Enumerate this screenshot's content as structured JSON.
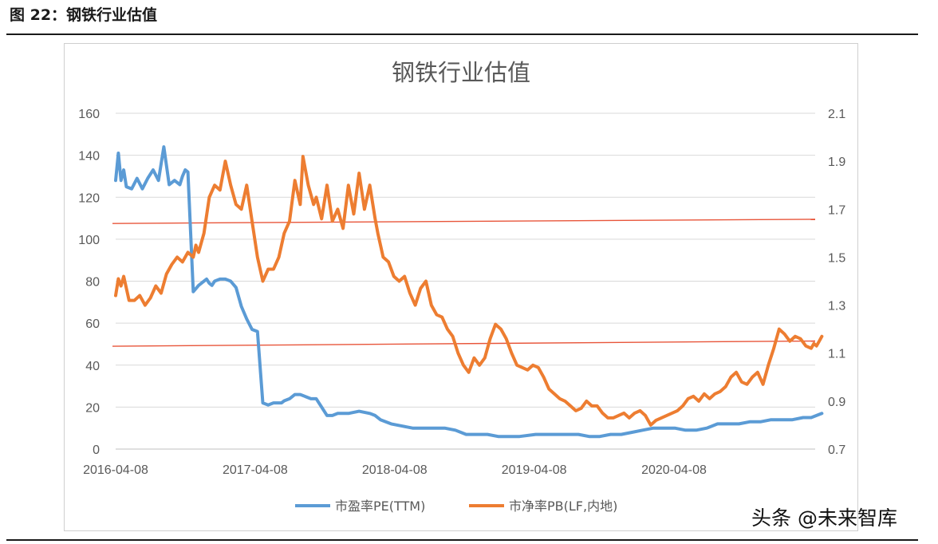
{
  "caption": "图 22：钢铁行业估值",
  "watermark": "头条 @未来智库",
  "colors": {
    "pe": "#5B9BD5",
    "pb": "#ED7D31",
    "refline": "#E8553A",
    "grid": "#D9D9D9"
  },
  "chart_data": {
    "type": "line",
    "title": "钢铁行业估值",
    "xlabel": "",
    "x_ticks": [
      "2016-04-08",
      "2017-04-08",
      "2018-04-08",
      "2019-04-08",
      "2020-04-08"
    ],
    "y_left": {
      "min": 0,
      "max": 160,
      "ticks": [
        0,
        20,
        40,
        60,
        80,
        100,
        120,
        140,
        160
      ]
    },
    "y_right": {
      "min": 0.7,
      "max": 2.1,
      "ticks": [
        "0.7",
        "0.9",
        "1.1",
        "1.3",
        "1.5",
        "1.7",
        "1.9",
        "2.1"
      ]
    },
    "grid": true,
    "legend_position": "bottom",
    "reference_lines": [
      {
        "axis": "left",
        "values": [
          107.5,
          109.5
        ]
      },
      {
        "axis": "left",
        "values": [
          49.0,
          51.5
        ]
      }
    ],
    "series": [
      {
        "name": "市盈率PE(TTM)",
        "axis": "left",
        "x": [
          "2016-04-08",
          "2016-04-15",
          "2016-04-22",
          "2016-04-29",
          "2016-05-06",
          "2016-05-20",
          "2016-06-03",
          "2016-06-17",
          "2016-07-01",
          "2016-07-15",
          "2016-07-29",
          "2016-08-12",
          "2016-08-26",
          "2016-09-09",
          "2016-09-23",
          "2016-09-30",
          "2016-10-07",
          "2016-10-14",
          "2016-10-28",
          "2016-11-11",
          "2016-11-25",
          "2016-12-02",
          "2016-12-09",
          "2016-12-16",
          "2016-12-23",
          "2017-01-06",
          "2017-01-20",
          "2017-02-03",
          "2017-02-17",
          "2017-03-03",
          "2017-03-17",
          "2017-03-31",
          "2017-04-14",
          "2017-04-28",
          "2017-05-12",
          "2017-05-26",
          "2017-06-09",
          "2017-06-16",
          "2017-06-23",
          "2017-07-07",
          "2017-07-21",
          "2017-08-04",
          "2017-08-18",
          "2017-09-01",
          "2017-09-15",
          "2017-10-13",
          "2017-10-27",
          "2017-11-10",
          "2017-11-24",
          "2017-12-08",
          "2018-01-05",
          "2018-02-02",
          "2018-02-16",
          "2018-03-02",
          "2018-03-30",
          "2018-04-27",
          "2018-05-25",
          "2018-06-22",
          "2018-07-20",
          "2018-08-17",
          "2018-09-14",
          "2018-10-12",
          "2018-11-09",
          "2018-12-07",
          "2019-01-04",
          "2019-02-01",
          "2019-03-01",
          "2019-04-12",
          "2019-05-10",
          "2019-06-07",
          "2019-07-05",
          "2019-08-02",
          "2019-08-30",
          "2019-09-27",
          "2019-10-25",
          "2019-11-22",
          "2019-12-20",
          "2020-01-17",
          "2020-02-14",
          "2020-03-13",
          "2020-04-10",
          "2020-05-08",
          "2020-06-05",
          "2020-07-03",
          "2020-07-31",
          "2020-08-28",
          "2020-09-25",
          "2020-10-23",
          "2020-11-20",
          "2020-12-18",
          "2021-01-15",
          "2021-02-12",
          "2021-03-12",
          "2021-04-02",
          "2021-04-16",
          "2021-04-30"
        ],
        "values": [
          128,
          141,
          128,
          133,
          125,
          124,
          129,
          124,
          129,
          133,
          128,
          144,
          126,
          128,
          126,
          130,
          133,
          132,
          75,
          78,
          80,
          81,
          79,
          78,
          80,
          81,
          81,
          80,
          77,
          68,
          62,
          57,
          56,
          22,
          21,
          22,
          22,
          22,
          23,
          24,
          26,
          26,
          25,
          24,
          24,
          16,
          16,
          17,
          17,
          17,
          18,
          17,
          16,
          14,
          12,
          11,
          10,
          10,
          10,
          10,
          9,
          7,
          7,
          7,
          6,
          6,
          6,
          7,
          7,
          7,
          7,
          7,
          6,
          6,
          7,
          7,
          8,
          9,
          10,
          10,
          10,
          9,
          9,
          10,
          12,
          12,
          12,
          13,
          13,
          14,
          14,
          14,
          15,
          15,
          16,
          17
        ]
      },
      {
        "name": "市净率PB(LF,内地)",
        "axis": "right",
        "x": [
          "2016-04-08",
          "2016-04-15",
          "2016-04-22",
          "2016-04-29",
          "2016-05-13",
          "2016-05-27",
          "2016-06-10",
          "2016-06-24",
          "2016-07-08",
          "2016-07-22",
          "2016-08-05",
          "2016-08-19",
          "2016-09-02",
          "2016-09-16",
          "2016-09-30",
          "2016-10-14",
          "2016-10-28",
          "2016-11-04",
          "2016-11-11",
          "2016-11-25",
          "2016-12-09",
          "2016-12-23",
          "2017-01-06",
          "2017-01-20",
          "2017-02-03",
          "2017-02-17",
          "2017-03-03",
          "2017-03-17",
          "2017-03-31",
          "2017-04-14",
          "2017-04-28",
          "2017-05-12",
          "2017-05-26",
          "2017-06-09",
          "2017-06-23",
          "2017-07-07",
          "2017-07-21",
          "2017-08-04",
          "2017-08-11",
          "2017-08-25",
          "2017-09-08",
          "2017-09-15",
          "2017-09-29",
          "2017-10-13",
          "2017-10-27",
          "2017-11-10",
          "2017-11-24",
          "2017-12-08",
          "2017-12-22",
          "2018-01-05",
          "2018-01-19",
          "2018-02-02",
          "2018-02-16",
          "2018-02-23",
          "2018-03-09",
          "2018-03-23",
          "2018-04-06",
          "2018-04-20",
          "2018-05-04",
          "2018-05-18",
          "2018-06-01",
          "2018-06-15",
          "2018-06-29",
          "2018-07-13",
          "2018-07-27",
          "2018-08-10",
          "2018-08-24",
          "2018-09-07",
          "2018-09-21",
          "2018-10-05",
          "2018-10-19",
          "2018-11-02",
          "2018-11-16",
          "2018-11-30",
          "2018-12-14",
          "2018-12-28",
          "2019-01-11",
          "2019-01-25",
          "2019-02-08",
          "2019-02-22",
          "2019-03-08",
          "2019-03-22",
          "2019-04-05",
          "2019-04-19",
          "2019-05-03",
          "2019-05-17",
          "2019-05-31",
          "2019-06-14",
          "2019-06-28",
          "2019-07-12",
          "2019-07-26",
          "2019-08-09",
          "2019-08-23",
          "2019-09-06",
          "2019-09-20",
          "2019-10-04",
          "2019-10-18",
          "2019-11-01",
          "2019-11-15",
          "2019-11-29",
          "2019-12-13",
          "2019-12-27",
          "2020-01-10",
          "2020-01-24",
          "2020-02-07",
          "2020-02-21",
          "2020-03-06",
          "2020-03-20",
          "2020-04-03",
          "2020-04-17",
          "2020-05-01",
          "2020-05-15",
          "2020-05-29",
          "2020-06-12",
          "2020-06-26",
          "2020-07-10",
          "2020-07-24",
          "2020-08-07",
          "2020-08-21",
          "2020-09-04",
          "2020-09-18",
          "2020-10-02",
          "2020-10-16",
          "2020-10-30",
          "2020-11-13",
          "2020-11-27",
          "2020-12-11",
          "2020-12-25",
          "2021-01-08",
          "2021-01-22",
          "2021-02-05",
          "2021-02-19",
          "2021-03-05",
          "2021-03-19",
          "2021-04-02",
          "2021-04-09",
          "2021-04-16",
          "2021-04-23",
          "2021-04-30"
        ],
        "values": [
          1.34,
          1.41,
          1.38,
          1.42,
          1.32,
          1.32,
          1.34,
          1.3,
          1.33,
          1.38,
          1.35,
          1.43,
          1.47,
          1.5,
          1.48,
          1.52,
          1.5,
          1.55,
          1.52,
          1.6,
          1.75,
          1.8,
          1.78,
          1.9,
          1.8,
          1.72,
          1.7,
          1.8,
          1.65,
          1.5,
          1.4,
          1.45,
          1.45,
          1.5,
          1.6,
          1.65,
          1.82,
          1.72,
          1.92,
          1.8,
          1.72,
          1.75,
          1.66,
          1.8,
          1.65,
          1.7,
          1.62,
          1.8,
          1.68,
          1.85,
          1.7,
          1.8,
          1.66,
          1.6,
          1.5,
          1.48,
          1.42,
          1.4,
          1.42,
          1.35,
          1.3,
          1.37,
          1.4,
          1.3,
          1.26,
          1.25,
          1.2,
          1.17,
          1.1,
          1.05,
          1.02,
          1.08,
          1.05,
          1.08,
          1.16,
          1.22,
          1.2,
          1.16,
          1.1,
          1.05,
          1.04,
          1.03,
          1.05,
          1.04,
          1.0,
          0.95,
          0.93,
          0.91,
          0.9,
          0.88,
          0.86,
          0.87,
          0.9,
          0.88,
          0.88,
          0.85,
          0.83,
          0.83,
          0.84,
          0.85,
          0.83,
          0.85,
          0.86,
          0.84,
          0.8,
          0.82,
          0.83,
          0.84,
          0.85,
          0.86,
          0.88,
          0.91,
          0.92,
          0.9,
          0.93,
          0.91,
          0.93,
          0.94,
          0.96,
          1.0,
          1.02,
          0.98,
          0.97,
          1.0,
          1.02,
          0.97,
          1.05,
          1.12,
          1.2,
          1.18,
          1.15,
          1.17,
          1.16,
          1.13,
          1.12,
          1.14,
          1.13,
          1.15,
          1.17
        ]
      }
    ]
  }
}
